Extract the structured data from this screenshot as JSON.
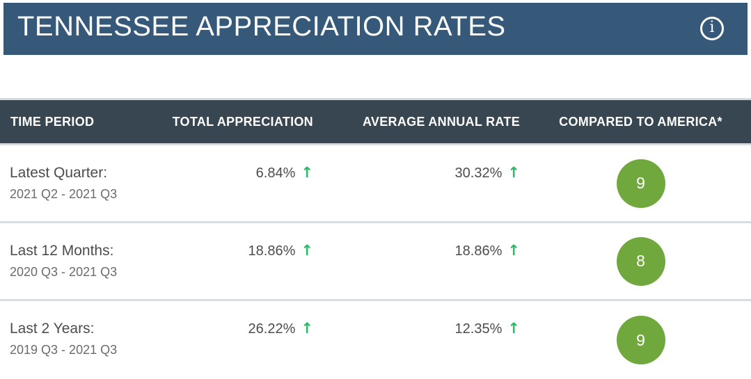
{
  "page": {
    "title": "TENNESSEE APPRECIATION RATES"
  },
  "glyphs": {
    "info": "i",
    "up_arrow": "↑"
  },
  "colors": {
    "banner_bg": "#365879",
    "table_header_bg": "#374650",
    "separator": "#d9dde2",
    "separator_light": "#d2d9df",
    "badge_green": "#71a83e",
    "arrow_green": "#27b964",
    "header_text": "#fdfdfd",
    "label_text": "#4c4c4c",
    "sub_text": "#6b6b6b"
  },
  "table": {
    "columns": [
      "TIME PERIOD",
      "TOTAL APPRECIATION",
      "AVERAGE ANNUAL RATE",
      "COMPARED TO AMERICA*"
    ],
    "rows": [
      {
        "period": "Latest Quarter:",
        "range": "2021 Q2 - 2021 Q3",
        "total_appreciation": "6.84%",
        "average_annual_rate": "30.32%",
        "compared_to_america": "9",
        "trend": "up"
      },
      {
        "period": "Last 12 Months:",
        "range": "2020 Q3 - 2021 Q3",
        "total_appreciation": "18.86%",
        "average_annual_rate": "18.86%",
        "compared_to_america": "8",
        "trend": "up"
      },
      {
        "period": "Last 2 Years:",
        "range": "2019 Q3 - 2021 Q3",
        "total_appreciation": "26.22%",
        "average_annual_rate": "12.35%",
        "compared_to_america": "9",
        "trend": "up"
      }
    ]
  }
}
